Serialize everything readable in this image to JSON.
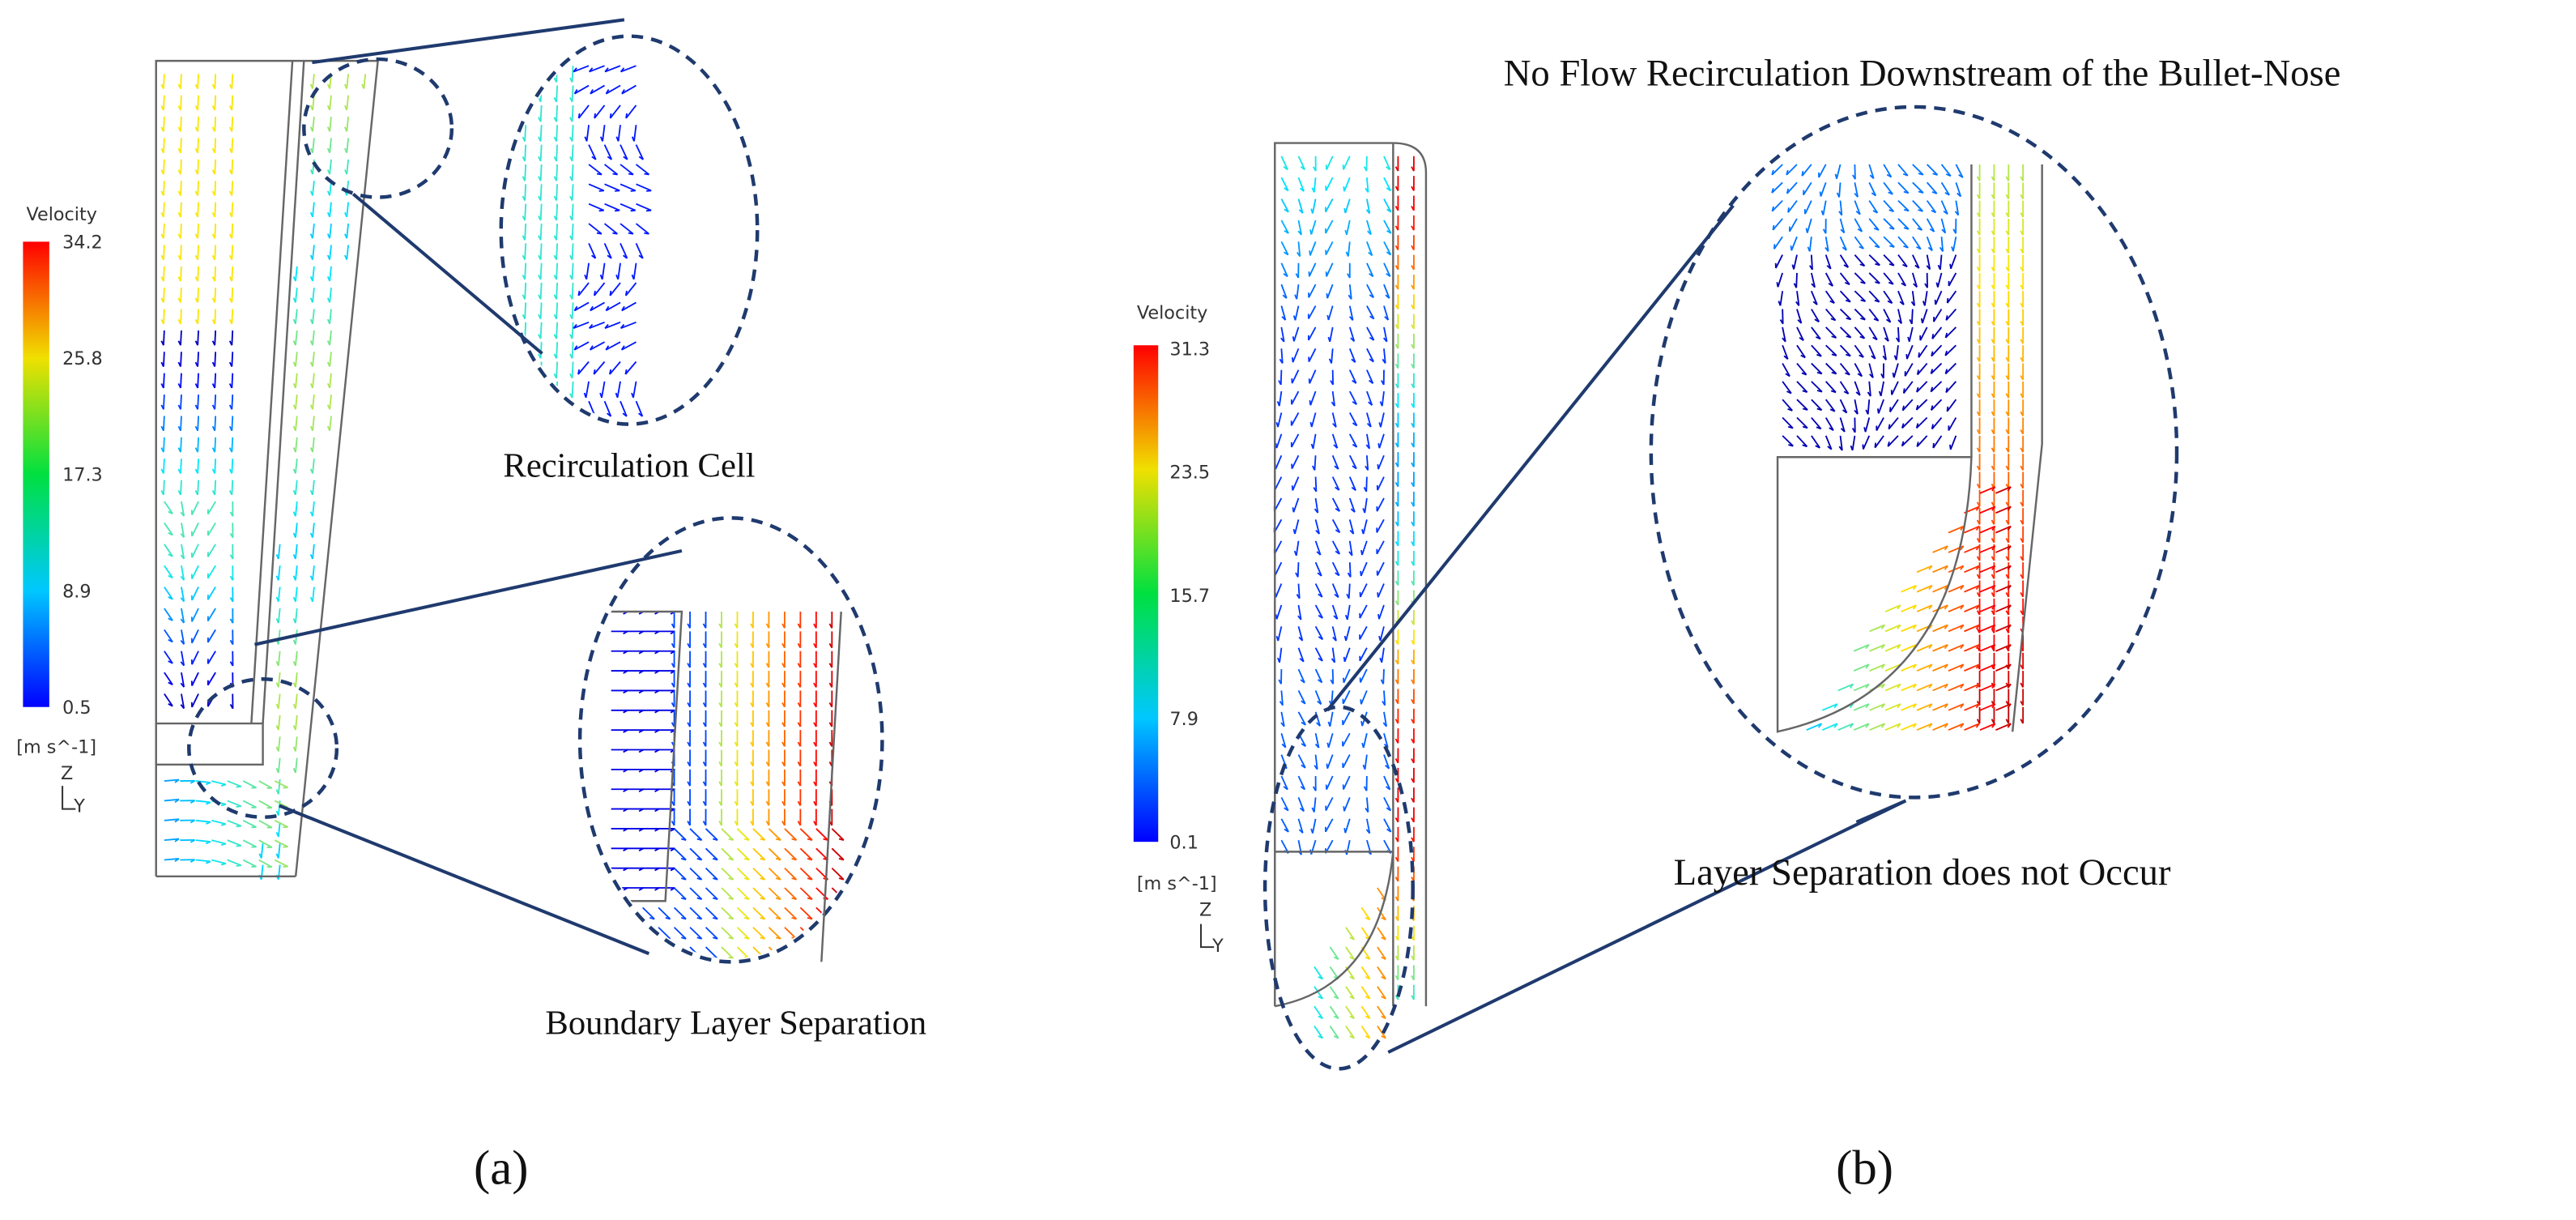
{
  "panel_a": {
    "label": "(a)",
    "legend": {
      "title": "Velocity",
      "ticks": [
        34.2,
        25.8,
        17.3,
        8.9,
        0.5
      ],
      "unit": "[m s^-1]",
      "axis_z": "Z",
      "axis_y": "Y"
    },
    "annotations": [
      "Recirculation Cell",
      "Boundary Layer Separation"
    ]
  },
  "panel_b": {
    "label": "(b)",
    "title": "No Flow Recirculation Downstream of the Bullet-Nose",
    "legend": {
      "title": "Velocity",
      "ticks": [
        31.3,
        23.5,
        15.7,
        7.9,
        0.1
      ],
      "unit": "[m s^-1]",
      "axis_z": "Z",
      "axis_y": "Y"
    },
    "annotations": [
      "Layer Separation does not Occur"
    ]
  }
}
